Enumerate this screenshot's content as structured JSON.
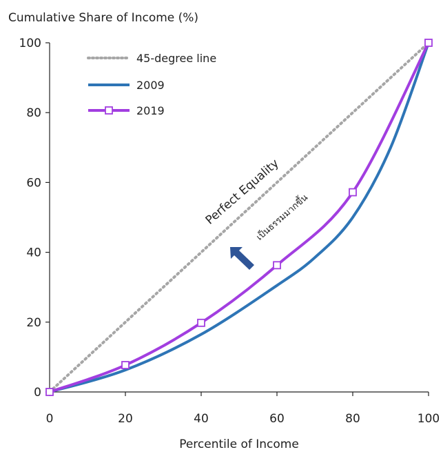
{
  "chart_data": {
    "type": "line",
    "title": "",
    "ylabel": "Cumulative Share of Income (%)",
    "xlabel": "Percentile of Income",
    "xlim": [
      0,
      100
    ],
    "ylim": [
      0,
      100
    ],
    "x_ticks": [
      "0",
      "20",
      "40",
      "60",
      "80",
      "100"
    ],
    "y_ticks": [
      "0",
      "20",
      "40",
      "60",
      "80",
      "100"
    ],
    "grid": false,
    "legend_position": "top-left",
    "series": [
      {
        "name": "45-degree line",
        "style": "dotted",
        "color": "#a6a6a6",
        "x": [
          0,
          100
        ],
        "y": [
          0,
          100
        ]
      },
      {
        "name": "2009",
        "style": "solid",
        "color": "#2e75b6",
        "x": [
          0,
          20,
          40,
          60,
          70,
          80,
          90,
          100
        ],
        "y": [
          0,
          6.3,
          16.5,
          30.5,
          38.5,
          50,
          70,
          100
        ]
      },
      {
        "name": "2019",
        "style": "solid-square-markers",
        "color": "#a23ee0",
        "x": [
          0,
          20,
          40,
          60,
          80,
          100
        ],
        "y": [
          0,
          7.7,
          19.8,
          36.3,
          57.2,
          100
        ]
      }
    ],
    "annotations": [
      {
        "text": "Perfect Equality"
      },
      {
        "text": "เป็นธรรมมากขึ้น"
      }
    ],
    "arrow_color": "#2f5597"
  }
}
